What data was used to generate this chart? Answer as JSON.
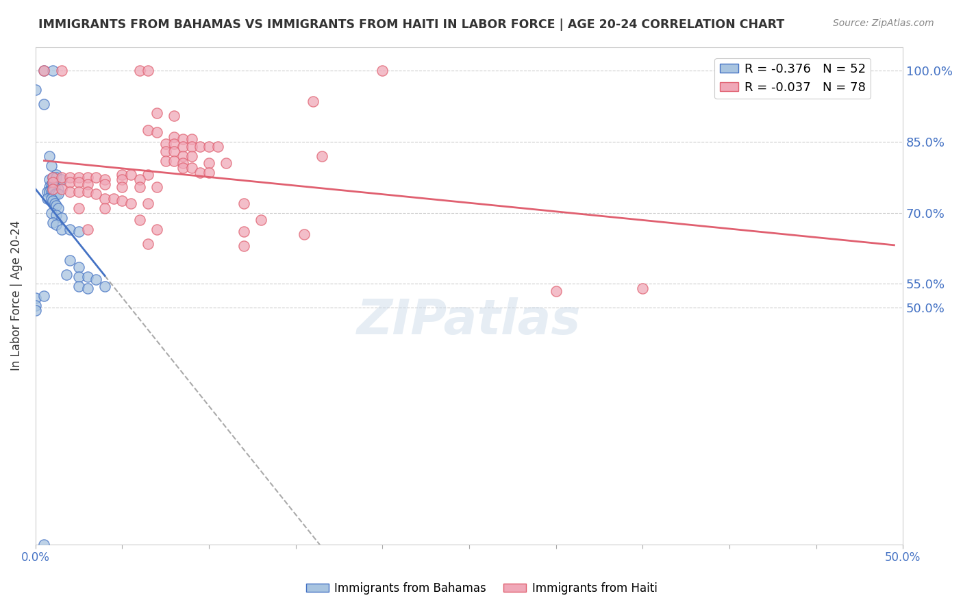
{
  "title": "IMMIGRANTS FROM BAHAMAS VS IMMIGRANTS FROM HAITI IN LABOR FORCE | AGE 20-24 CORRELATION CHART",
  "source": "Source: ZipAtlas.com",
  "xlabel": "",
  "ylabel": "In Labor Force | Age 20-24",
  "xmin": 0.0,
  "xmax": 0.5,
  "ymin": 0.0,
  "ymax": 1.05,
  "yticks": [
    0.5,
    0.55,
    0.7,
    0.85,
    1.0
  ],
  "ytick_labels": [
    "50.0%",
    "55.0%",
    "70.0%",
    "85.0%",
    "100.0%"
  ],
  "xticks": [
    0.0,
    0.05,
    0.1,
    0.15,
    0.2,
    0.25,
    0.3,
    0.35,
    0.4,
    0.45,
    0.5
  ],
  "xtick_labels": [
    "0.0%",
    "",
    "",
    "",
    "",
    "",
    "",
    "",
    "",
    "",
    "50.0%"
  ],
  "background_color": "#ffffff",
  "grid_color": "#cccccc",
  "watermark": "ZIPatlas",
  "bahamas_color": "#a8c4e0",
  "haiti_color": "#f0a8b8",
  "bahamas_line_color": "#4472c4",
  "haiti_line_color": "#e06070",
  "R_bahamas": -0.376,
  "N_bahamas": 52,
  "R_haiti": -0.037,
  "N_haiti": 78,
  "legend_label_bahamas": "Immigrants from Bahamas",
  "legend_label_haiti": "Immigrants from Haiti",
  "bahamas_points": [
    [
      0.0,
      0.96
    ],
    [
      0.005,
      0.93
    ],
    [
      0.005,
      1.0
    ],
    [
      0.01,
      1.0
    ],
    [
      0.008,
      0.82
    ],
    [
      0.009,
      0.8
    ],
    [
      0.012,
      0.78
    ],
    [
      0.008,
      0.77
    ],
    [
      0.009,
      0.76
    ],
    [
      0.01,
      0.775
    ],
    [
      0.012,
      0.775
    ],
    [
      0.015,
      0.77
    ],
    [
      0.008,
      0.755
    ],
    [
      0.009,
      0.755
    ],
    [
      0.01,
      0.755
    ],
    [
      0.011,
      0.755
    ],
    [
      0.013,
      0.75
    ],
    [
      0.007,
      0.745
    ],
    [
      0.008,
      0.745
    ],
    [
      0.009,
      0.745
    ],
    [
      0.01,
      0.745
    ],
    [
      0.011,
      0.74
    ],
    [
      0.012,
      0.74
    ],
    [
      0.013,
      0.74
    ],
    [
      0.007,
      0.73
    ],
    [
      0.009,
      0.73
    ],
    [
      0.01,
      0.725
    ],
    [
      0.011,
      0.72
    ],
    [
      0.012,
      0.715
    ],
    [
      0.013,
      0.71
    ],
    [
      0.009,
      0.7
    ],
    [
      0.012,
      0.695
    ],
    [
      0.015,
      0.69
    ],
    [
      0.01,
      0.68
    ],
    [
      0.012,
      0.675
    ],
    [
      0.015,
      0.665
    ],
    [
      0.02,
      0.665
    ],
    [
      0.025,
      0.66
    ],
    [
      0.02,
      0.6
    ],
    [
      0.025,
      0.585
    ],
    [
      0.018,
      0.57
    ],
    [
      0.025,
      0.565
    ],
    [
      0.03,
      0.565
    ],
    [
      0.035,
      0.56
    ],
    [
      0.025,
      0.545
    ],
    [
      0.03,
      0.54
    ],
    [
      0.04,
      0.545
    ],
    [
      0.0,
      0.52
    ],
    [
      0.005,
      0.525
    ],
    [
      0.0,
      0.505
    ],
    [
      0.0,
      0.495
    ],
    [
      0.005,
      0.0
    ]
  ],
  "haiti_points": [
    [
      0.005,
      1.0
    ],
    [
      0.015,
      1.0
    ],
    [
      0.06,
      1.0
    ],
    [
      0.065,
      1.0
    ],
    [
      0.2,
      1.0
    ],
    [
      0.16,
      0.935
    ],
    [
      0.07,
      0.91
    ],
    [
      0.08,
      0.905
    ],
    [
      0.065,
      0.875
    ],
    [
      0.07,
      0.87
    ],
    [
      0.08,
      0.86
    ],
    [
      0.085,
      0.855
    ],
    [
      0.09,
      0.855
    ],
    [
      0.075,
      0.845
    ],
    [
      0.08,
      0.845
    ],
    [
      0.085,
      0.84
    ],
    [
      0.09,
      0.84
    ],
    [
      0.095,
      0.84
    ],
    [
      0.1,
      0.84
    ],
    [
      0.105,
      0.84
    ],
    [
      0.075,
      0.83
    ],
    [
      0.08,
      0.83
    ],
    [
      0.085,
      0.82
    ],
    [
      0.09,
      0.82
    ],
    [
      0.165,
      0.82
    ],
    [
      0.075,
      0.81
    ],
    [
      0.08,
      0.81
    ],
    [
      0.085,
      0.805
    ],
    [
      0.1,
      0.805
    ],
    [
      0.11,
      0.805
    ],
    [
      0.085,
      0.795
    ],
    [
      0.09,
      0.795
    ],
    [
      0.095,
      0.785
    ],
    [
      0.1,
      0.785
    ],
    [
      0.05,
      0.78
    ],
    [
      0.055,
      0.78
    ],
    [
      0.065,
      0.78
    ],
    [
      0.01,
      0.775
    ],
    [
      0.015,
      0.775
    ],
    [
      0.02,
      0.775
    ],
    [
      0.025,
      0.775
    ],
    [
      0.03,
      0.775
    ],
    [
      0.035,
      0.775
    ],
    [
      0.04,
      0.77
    ],
    [
      0.05,
      0.77
    ],
    [
      0.06,
      0.77
    ],
    [
      0.01,
      0.765
    ],
    [
      0.02,
      0.765
    ],
    [
      0.025,
      0.765
    ],
    [
      0.03,
      0.76
    ],
    [
      0.04,
      0.76
    ],
    [
      0.05,
      0.755
    ],
    [
      0.06,
      0.755
    ],
    [
      0.07,
      0.755
    ],
    [
      0.01,
      0.75
    ],
    [
      0.015,
      0.75
    ],
    [
      0.02,
      0.745
    ],
    [
      0.025,
      0.745
    ],
    [
      0.03,
      0.745
    ],
    [
      0.035,
      0.74
    ],
    [
      0.04,
      0.73
    ],
    [
      0.045,
      0.73
    ],
    [
      0.05,
      0.725
    ],
    [
      0.055,
      0.72
    ],
    [
      0.065,
      0.72
    ],
    [
      0.12,
      0.72
    ],
    [
      0.025,
      0.71
    ],
    [
      0.04,
      0.71
    ],
    [
      0.06,
      0.685
    ],
    [
      0.13,
      0.685
    ],
    [
      0.03,
      0.665
    ],
    [
      0.07,
      0.665
    ],
    [
      0.12,
      0.66
    ],
    [
      0.155,
      0.655
    ],
    [
      0.065,
      0.635
    ],
    [
      0.12,
      0.63
    ],
    [
      0.3,
      0.535
    ],
    [
      0.35,
      0.54
    ]
  ]
}
